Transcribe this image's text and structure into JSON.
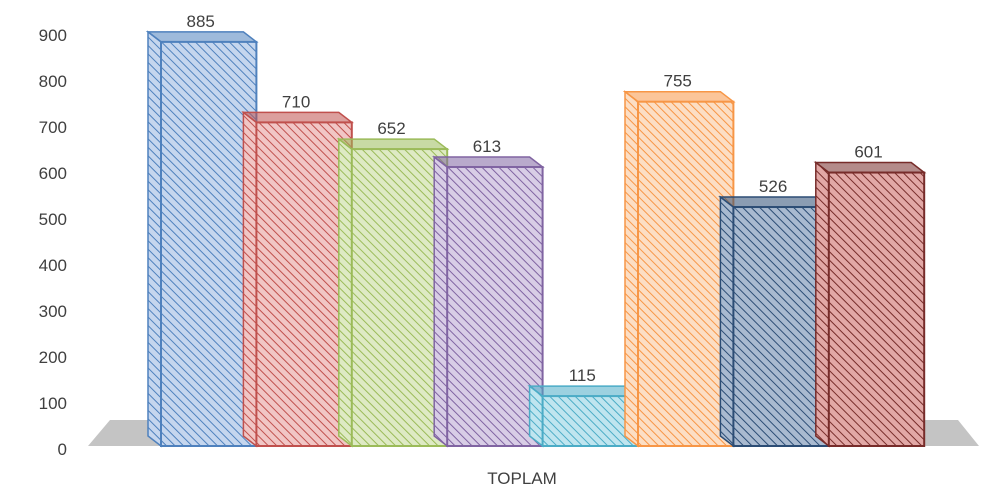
{
  "chart_data": {
    "type": "bar",
    "three_d": true,
    "title": "",
    "xlabel": "",
    "ylabel": "",
    "categories": [
      "TOPLAM"
    ],
    "category_label": "TOPLAM",
    "ylim": [
      0,
      900
    ],
    "yticks": [
      "0",
      "100",
      "200",
      "300",
      "400",
      "500",
      "600",
      "700",
      "800",
      "900"
    ],
    "grid": false,
    "legend": "none",
    "series": [
      {
        "values": [
          885
        ],
        "color": "#4F81BD",
        "fill": "#C5D6EE",
        "data_label": "885"
      },
      {
        "values": [
          710
        ],
        "color": "#C0504D",
        "fill": "#F1C6C5",
        "data_label": "710"
      },
      {
        "values": [
          652
        ],
        "color": "#9BBB59",
        "fill": "#DEEAC4",
        "data_label": "652"
      },
      {
        "values": [
          613
        ],
        "color": "#8064A2",
        "fill": "#D8CDE6",
        "data_label": "613"
      },
      {
        "values": [
          115
        ],
        "color": "#4BACC6",
        "fill": "#BFE5EF",
        "data_label": "115"
      },
      {
        "values": [
          755
        ],
        "color": "#F79646",
        "fill": "#FCDEC4",
        "data_label": "755"
      },
      {
        "values": [
          526
        ],
        "color": "#2C4D75",
        "fill": "#A9BAD0",
        "data_label": "526"
      },
      {
        "values": [
          601
        ],
        "color": "#772C2A",
        "fill": "#E2A8A6",
        "data_label": "601"
      }
    ],
    "floor_color": "#C4C4C4"
  }
}
